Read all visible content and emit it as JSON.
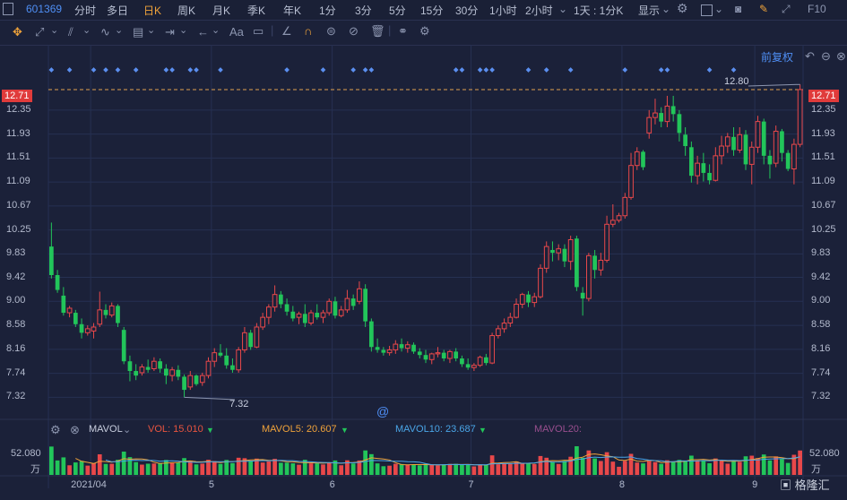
{
  "toolbar": {
    "code": "601369",
    "periods": [
      "分时",
      "多日",
      "日K",
      "周K",
      "月K",
      "季K",
      "年K",
      "1分",
      "3分",
      "5分",
      "15分",
      "30分",
      "1小时",
      "2小时"
    ],
    "active_period": "日K",
    "combo_label": "1天 : 1分K",
    "display_label": "显示",
    "f10": "F10"
  },
  "draw_tools": {
    "text_tool": "Aa"
  },
  "fuquan": "前复权",
  "chart_data": [
    {
      "type": "candlestick",
      "title": "",
      "yticks": [
        12.35,
        11.93,
        11.51,
        11.09,
        10.67,
        10.25,
        9.83,
        9.42,
        9.0,
        8.58,
        8.16,
        7.74,
        7.32
      ],
      "ylim": [
        6.98,
        13.18
      ],
      "last_price": "12.71",
      "high_annotation": "12.80",
      "low_annotation": "7.32",
      "x_labels": [
        "2021/04",
        "5",
        "6",
        "7",
        "8",
        "9"
      ],
      "x_label_index": [
        7,
        27,
        47,
        70,
        95,
        117
      ],
      "candles": [
        [
          9.96,
          10.38,
          9.4,
          9.46
        ],
        [
          9.46,
          9.55,
          9.15,
          9.2
        ],
        [
          9.1,
          9.25,
          8.75,
          8.8
        ],
        [
          8.8,
          8.92,
          8.72,
          8.88
        ],
        [
          8.8,
          8.85,
          8.55,
          8.6
        ],
        [
          8.6,
          8.7,
          8.35,
          8.45
        ],
        [
          8.45,
          8.58,
          8.4,
          8.52
        ],
        [
          8.48,
          8.62,
          8.35,
          8.55
        ],
        [
          8.6,
          9.17,
          8.55,
          8.85
        ],
        [
          8.85,
          8.95,
          8.7,
          8.76
        ],
        [
          8.76,
          8.98,
          8.72,
          8.92
        ],
        [
          8.92,
          8.95,
          8.55,
          8.62
        ],
        [
          8.5,
          8.55,
          7.9,
          7.95
        ],
        [
          7.95,
          8.05,
          7.6,
          7.78
        ],
        [
          7.78,
          7.9,
          7.62,
          7.7
        ],
        [
          7.75,
          7.9,
          7.7,
          7.85
        ],
        [
          7.85,
          7.98,
          7.75,
          7.8
        ],
        [
          7.82,
          8.02,
          7.78,
          7.95
        ],
        [
          7.95,
          8.0,
          7.75,
          7.82
        ],
        [
          7.82,
          7.9,
          7.55,
          7.7
        ],
        [
          7.7,
          7.85,
          7.6,
          7.8
        ],
        [
          7.8,
          7.88,
          7.62,
          7.68
        ],
        [
          7.68,
          7.72,
          7.32,
          7.45
        ],
        [
          7.5,
          7.78,
          7.45,
          7.7
        ],
        [
          7.7,
          7.72,
          7.52,
          7.55
        ],
        [
          7.58,
          7.75,
          7.52,
          7.7
        ],
        [
          7.7,
          8.02,
          7.65,
          7.95
        ],
        [
          7.95,
          8.18,
          7.85,
          8.1
        ],
        [
          8.1,
          8.25,
          8.02,
          8.05
        ],
        [
          8.05,
          8.18,
          7.82,
          7.88
        ],
        [
          7.88,
          8.0,
          7.75,
          7.8
        ],
        [
          7.8,
          8.2,
          7.75,
          8.15
        ],
        [
          8.15,
          8.55,
          8.1,
          8.45
        ],
        [
          8.45,
          8.5,
          8.15,
          8.2
        ],
        [
          8.2,
          8.62,
          8.18,
          8.55
        ],
        [
          8.55,
          8.8,
          8.5,
          8.72
        ],
        [
          8.72,
          8.95,
          8.6,
          8.9
        ],
        [
          8.9,
          9.28,
          8.82,
          9.12
        ],
        [
          9.12,
          9.18,
          8.88,
          8.95
        ],
        [
          8.95,
          9.05,
          8.75,
          8.82
        ],
        [
          8.82,
          8.92,
          8.65,
          8.7
        ],
        [
          8.72,
          8.82,
          8.6,
          8.78
        ],
        [
          8.78,
          8.95,
          8.55,
          8.62
        ],
        [
          8.62,
          8.85,
          8.58,
          8.8
        ],
        [
          8.8,
          8.95,
          8.68,
          8.72
        ],
        [
          8.72,
          8.85,
          8.62,
          8.8
        ],
        [
          8.8,
          9.05,
          8.75,
          9.0
        ],
        [
          9.0,
          9.08,
          8.7,
          8.75
        ],
        [
          8.75,
          8.92,
          8.72,
          8.85
        ],
        [
          8.85,
          9.2,
          8.8,
          9.05
        ],
        [
          9.05,
          9.12,
          8.85,
          8.92
        ],
        [
          9.0,
          9.35,
          8.95,
          9.22
        ],
        [
          9.22,
          9.3,
          8.55,
          8.65
        ],
        [
          8.65,
          8.7,
          8.12,
          8.2
        ],
        [
          8.2,
          8.35,
          8.1,
          8.15
        ],
        [
          8.15,
          8.2,
          8.05,
          8.1
        ],
        [
          8.1,
          8.22,
          8.05,
          8.15
        ],
        [
          8.15,
          8.32,
          8.08,
          8.25
        ],
        [
          8.25,
          8.35,
          8.12,
          8.18
        ],
        [
          8.18,
          8.3,
          8.1,
          8.24
        ],
        [
          8.24,
          8.28,
          8.08,
          8.12
        ],
        [
          8.12,
          8.18,
          8.0,
          8.06
        ],
        [
          8.06,
          8.15,
          7.92,
          7.98
        ],
        [
          7.98,
          8.1,
          7.9,
          8.08
        ],
        [
          8.08,
          8.2,
          8.02,
          8.1
        ],
        [
          8.1,
          8.15,
          7.95,
          8.0
        ],
        [
          8.0,
          8.15,
          7.92,
          8.12
        ],
        [
          8.12,
          8.18,
          7.95,
          8.0
        ],
        [
          8.0,
          8.05,
          7.85,
          7.9
        ],
        [
          7.9,
          8.0,
          7.8,
          7.84
        ],
        [
          7.84,
          7.92,
          7.78,
          7.88
        ],
        [
          7.88,
          8.05,
          7.85,
          8.02
        ],
        [
          8.02,
          8.08,
          7.88,
          7.92
        ],
        [
          7.92,
          8.45,
          7.9,
          8.4
        ],
        [
          8.4,
          8.58,
          8.35,
          8.52
        ],
        [
          8.52,
          8.7,
          8.45,
          8.62
        ],
        [
          8.62,
          8.8,
          8.55,
          8.72
        ],
        [
          8.72,
          9.05,
          8.7,
          8.95
        ],
        [
          8.95,
          9.15,
          8.88,
          9.12
        ],
        [
          9.12,
          9.18,
          8.9,
          8.98
        ],
        [
          8.98,
          9.15,
          8.9,
          9.08
        ],
        [
          9.08,
          9.65,
          9.05,
          9.58
        ],
        [
          9.58,
          10.05,
          9.5,
          9.96
        ],
        [
          9.9,
          10.05,
          9.7,
          9.85
        ],
        [
          9.85,
          10.0,
          9.72,
          9.92
        ],
        [
          9.92,
          10.0,
          9.6,
          9.7
        ],
        [
          9.7,
          10.15,
          9.55,
          10.08
        ],
        [
          10.1,
          10.15,
          9.18,
          9.25
        ],
        [
          9.15,
          9.25,
          8.75,
          9.05
        ],
        [
          9.05,
          9.85,
          9.0,
          9.8
        ],
        [
          9.8,
          9.9,
          9.4,
          9.55
        ],
        [
          9.55,
          9.85,
          9.45,
          9.72
        ],
        [
          9.72,
          10.5,
          9.68,
          10.35
        ],
        [
          10.35,
          10.7,
          10.3,
          10.42
        ],
        [
          10.42,
          10.55,
          10.38,
          10.5
        ],
        [
          10.5,
          10.9,
          10.45,
          10.82
        ],
        [
          10.82,
          11.6,
          10.78,
          11.38
        ],
        [
          11.38,
          11.7,
          11.3,
          11.62
        ],
        [
          11.62,
          11.65,
          11.3,
          11.35
        ],
        [
          11.95,
          12.35,
          11.85,
          12.22
        ],
        [
          12.22,
          12.55,
          12.1,
          12.3
        ],
        [
          12.3,
          12.4,
          12.05,
          12.15
        ],
        [
          12.15,
          12.6,
          12.05,
          12.42
        ],
        [
          12.42,
          12.6,
          12.15,
          12.28
        ],
        [
          12.28,
          12.35,
          11.8,
          11.95
        ],
        [
          11.92,
          12.05,
          11.55,
          11.72
        ],
        [
          11.7,
          11.8,
          11.08,
          11.2
        ],
        [
          11.2,
          11.55,
          11.05,
          11.42
        ],
        [
          11.42,
          11.6,
          11.1,
          11.25
        ],
        [
          11.25,
          11.4,
          11.05,
          11.12
        ],
        [
          11.12,
          11.7,
          11.1,
          11.55
        ],
        [
          11.55,
          11.9,
          11.4,
          11.72
        ],
        [
          11.72,
          11.95,
          11.6,
          11.88
        ],
        [
          11.88,
          12.05,
          11.55,
          11.65
        ],
        [
          11.65,
          12.05,
          11.6,
          11.92
        ],
        [
          11.92,
          12.0,
          11.3,
          11.4
        ],
        [
          11.4,
          11.8,
          11.05,
          11.7
        ],
        [
          11.7,
          12.25,
          11.6,
          12.15
        ],
        [
          12.15,
          12.2,
          11.4,
          11.55
        ],
        [
          11.55,
          11.65,
          11.15,
          11.4
        ],
        [
          11.42,
          12.08,
          11.35,
          11.98
        ],
        [
          11.98,
          12.02,
          11.45,
          11.6
        ],
        [
          11.6,
          11.65,
          11.28,
          11.32
        ],
        [
          11.32,
          11.85,
          11.05,
          11.75
        ],
        [
          11.75,
          12.8,
          11.7,
          12.71
        ]
      ],
      "event_marker_index": [
        0,
        3,
        7,
        9,
        11,
        14,
        19,
        20,
        23,
        24,
        28,
        39,
        45,
        50,
        52,
        53,
        67,
        68,
        71,
        72,
        73,
        79,
        82,
        86,
        95,
        101,
        102,
        109,
        113
      ]
    },
    {
      "type": "bar",
      "title": "",
      "indicator": "MAVOL",
      "legend": {
        "vol": "VOL: 15.010",
        "ma5": "MAVOL5: 20.607",
        "ma10": "MAVOL10: 23.687",
        "ma20": "MAVOL20:"
      },
      "legend_colors": {
        "vol": "#e8543f",
        "ma5": "#f0a33a",
        "ma10": "#4aa6e8",
        "ma20": "#9a4f8f"
      },
      "ymax_label": "52.080",
      "unit": "万",
      "ylim": [
        0,
        52.08
      ]
    }
  ],
  "colors": {
    "up": "#e8484a",
    "down": "#22c55a",
    "grid": "#263052",
    "bg": "#1b2139",
    "dash": "#e2a14f",
    "marker": "#5b8ff0"
  }
}
